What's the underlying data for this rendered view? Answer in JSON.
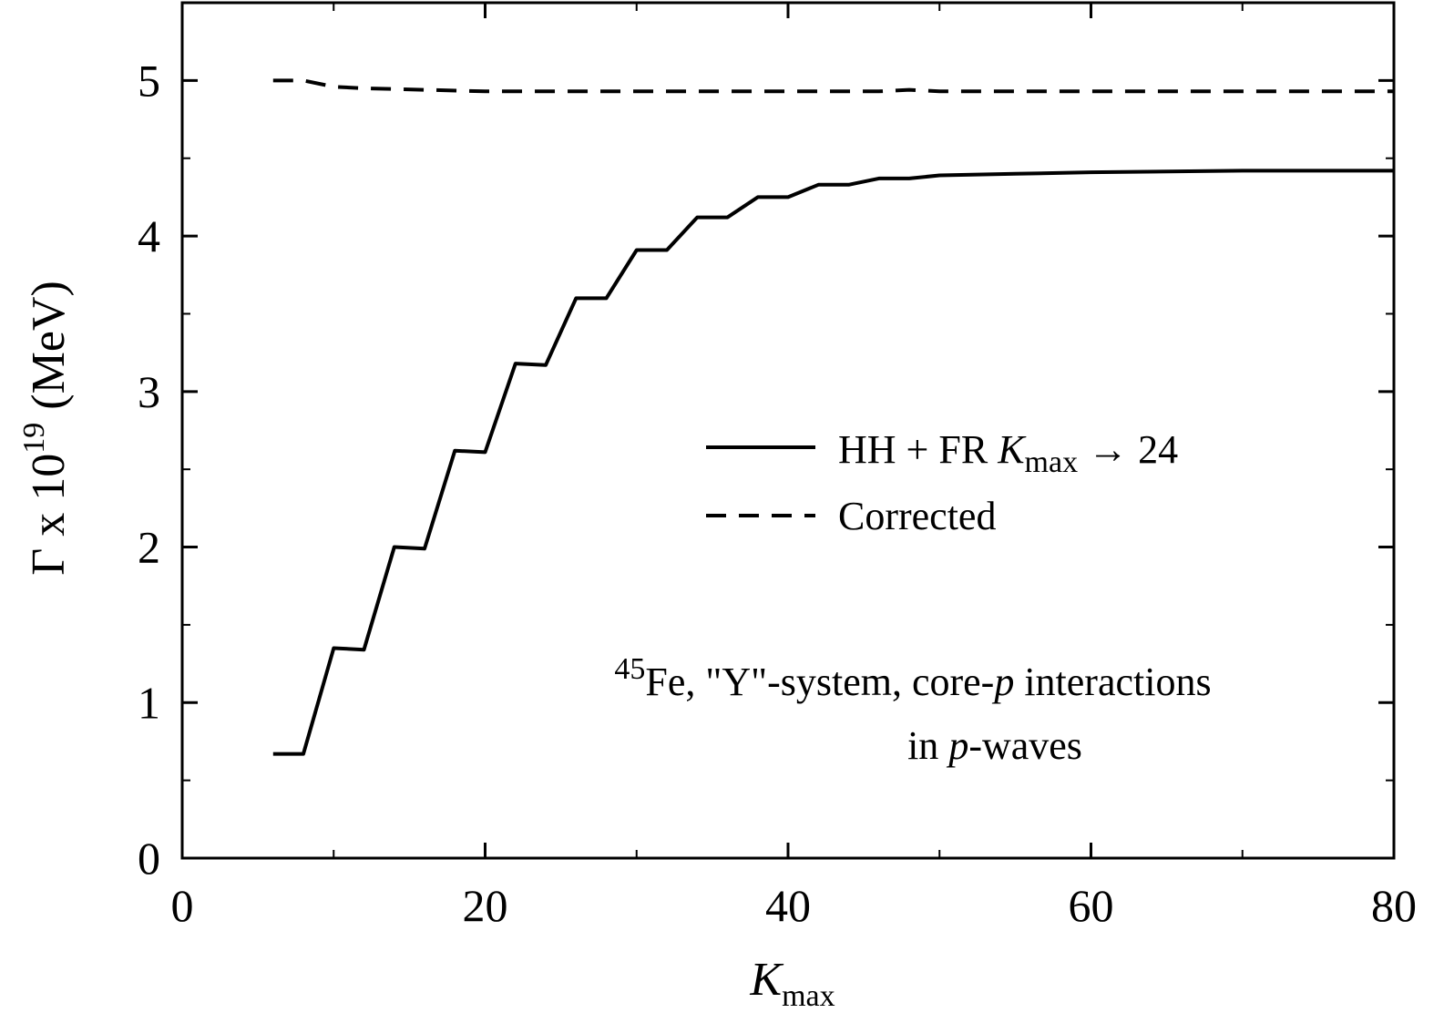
{
  "chart_data": {
    "type": "line",
    "xlabel": {
      "main": "K",
      "sub": "max"
    },
    "ylabel": {
      "main": "Γ x 10",
      "sup": "19",
      "unit": "(MeV)"
    },
    "xlim": [
      0,
      80
    ],
    "ylim": [
      0,
      5.5
    ],
    "x_ticks": [
      "0",
      "20",
      "40",
      "60",
      "80"
    ],
    "y_ticks": [
      "0",
      "1",
      "2",
      "3",
      "4",
      "5"
    ],
    "x_minor_step": 10,
    "y_minor_step": 0.5,
    "grid": false,
    "legend_position": "center-right",
    "series": [
      {
        "style": "solid",
        "color": "#000000",
        "legend": {
          "pre": "HH + FR  ",
          "k": "K",
          "sub": "max",
          "post": " → 24"
        },
        "points": [
          [
            6,
            0.67
          ],
          [
            8,
            0.67
          ],
          [
            10,
            1.35
          ],
          [
            12,
            1.34
          ],
          [
            14,
            2.0
          ],
          [
            16,
            1.99
          ],
          [
            18,
            2.62
          ],
          [
            20,
            2.61
          ],
          [
            22,
            3.18
          ],
          [
            24,
            3.17
          ],
          [
            26,
            3.6
          ],
          [
            28,
            3.6
          ],
          [
            30,
            3.91
          ],
          [
            32,
            3.91
          ],
          [
            34,
            4.12
          ],
          [
            36,
            4.12
          ],
          [
            38,
            4.25
          ],
          [
            40,
            4.25
          ],
          [
            42,
            4.33
          ],
          [
            44,
            4.33
          ],
          [
            46,
            4.37
          ],
          [
            48,
            4.37
          ],
          [
            50,
            4.39
          ],
          [
            55,
            4.4
          ],
          [
            60,
            4.41
          ],
          [
            70,
            4.42
          ],
          [
            80,
            4.42
          ]
        ]
      },
      {
        "style": "dashed",
        "color": "#000000",
        "legend": {
          "text": "Corrected"
        },
        "points": [
          [
            6,
            5.0
          ],
          [
            8,
            5.0
          ],
          [
            10,
            4.96
          ],
          [
            12,
            4.95
          ],
          [
            16,
            4.94
          ],
          [
            20,
            4.93
          ],
          [
            30,
            4.93
          ],
          [
            40,
            4.93
          ],
          [
            46,
            4.93
          ],
          [
            48,
            4.94
          ],
          [
            50,
            4.93
          ],
          [
            60,
            4.93
          ],
          [
            80,
            4.93
          ]
        ]
      }
    ],
    "annotation": {
      "line1_sup": "45",
      "line1_a": "Fe, \"Y\"-system, core-",
      "line1_p": "p",
      "line1_b": " interactions",
      "line2_a": "in ",
      "line2_p": "p",
      "line2_b": "-waves"
    }
  }
}
